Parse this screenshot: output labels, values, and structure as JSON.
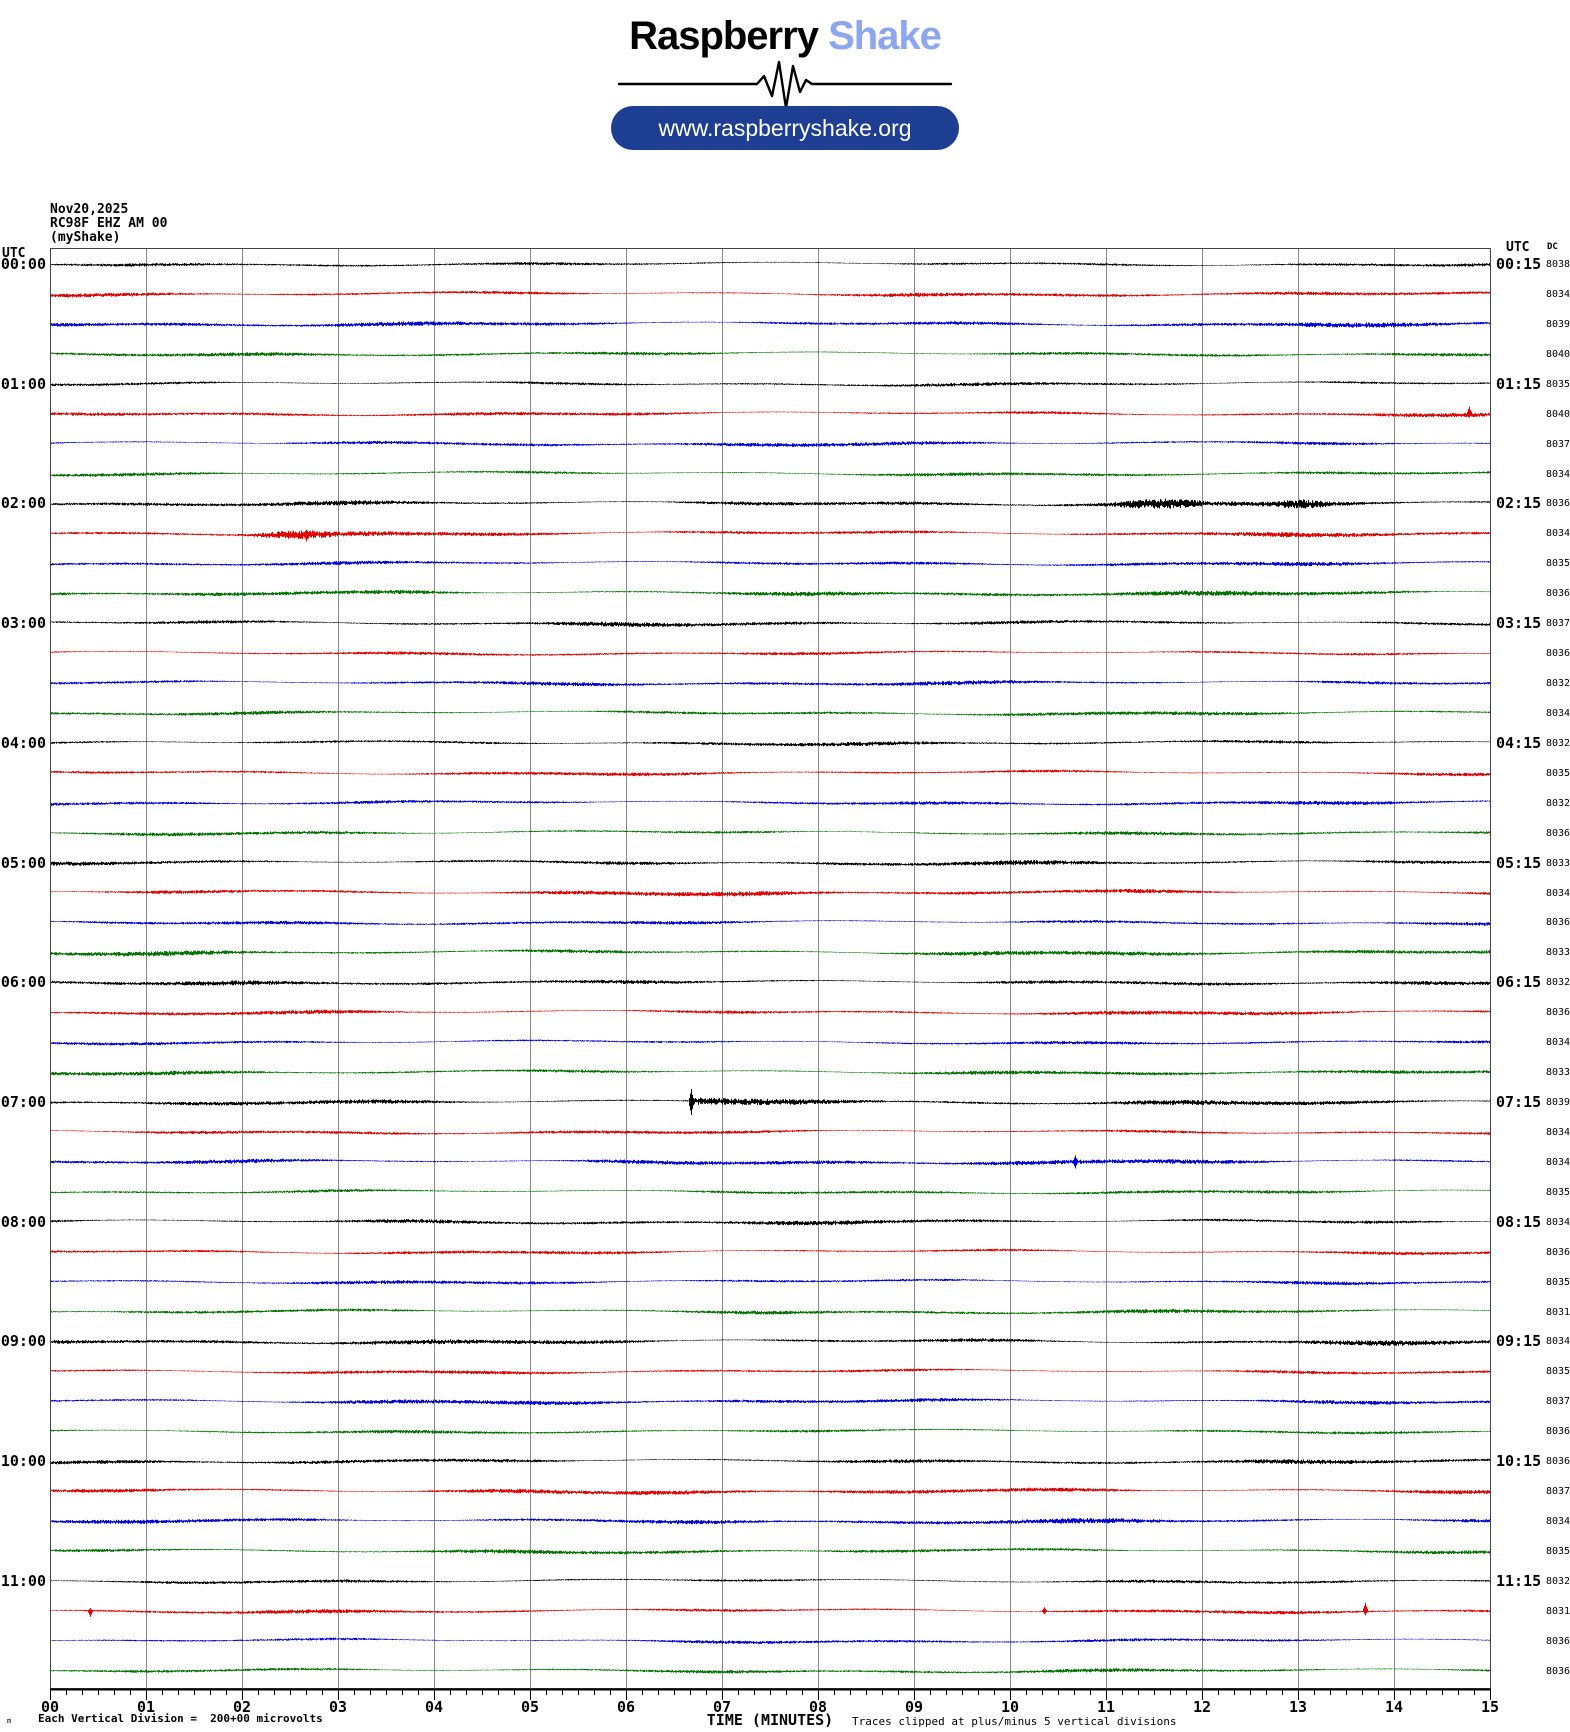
{
  "branding": {
    "name_black": "Raspberry",
    "name_accent": "Shake",
    "url": "www.raspberryshake.org",
    "accent_color": "#8ca6f0",
    "pill_color": "#1e3e94"
  },
  "plot_header": {
    "date": "Nov20,2025",
    "station": "RC98F EHZ AM 00",
    "network": "(myShake)"
  },
  "labels": {
    "utc_left": "UTC",
    "utc_right": "UTC",
    "dc": "DC"
  },
  "footer": {
    "xlabel": "TIME (MINUTES)",
    "left_note": "Each Vertical Division =  200+00 microvolts",
    "right_note": "Traces clipped at plus/minus 5 vertical divisions",
    "corner_mark": "m"
  },
  "colors": {
    "trace_cycle": [
      "#000000",
      "#e40000",
      "#0000dd",
      "#007300"
    ],
    "grid": "#8a8a8a",
    "border": "#444444"
  },
  "chart_data": {
    "type": "line",
    "subtype": "helicorder",
    "title": "RC98F EHZ AM 00 helicorder, Nov 20 2025",
    "xlabel": "TIME (MINUTES)",
    "x_min": 0,
    "x_max": 15,
    "x_ticks": [
      "00",
      "01",
      "02",
      "03",
      "04",
      "05",
      "06",
      "07",
      "08",
      "09",
      "10",
      "11",
      "12",
      "13",
      "14",
      "15"
    ],
    "minor_ticks_per_minute": 5,
    "minutes_per_row": 15,
    "rows_per_hour": 4,
    "clip_divisions": 5,
    "grid": true,
    "rows": [
      {
        "left_label": "00:00",
        "right_label": "00:15",
        "color": "black",
        "dc": 8038
      },
      {
        "left_label": "",
        "right_label": "",
        "color": "red",
        "dc": 8034
      },
      {
        "left_label": "",
        "right_label": "",
        "color": "blue",
        "dc": 8039
      },
      {
        "left_label": "",
        "right_label": "",
        "color": "green",
        "dc": 8040
      },
      {
        "left_label": "01:00",
        "right_label": "01:15",
        "color": "black",
        "dc": 8035
      },
      {
        "left_label": "",
        "right_label": "",
        "color": "red",
        "dc": 8040
      },
      {
        "left_label": "",
        "right_label": "",
        "color": "blue",
        "dc": 8037
      },
      {
        "left_label": "",
        "right_label": "",
        "color": "green",
        "dc": 8034
      },
      {
        "left_label": "02:00",
        "right_label": "02:15",
        "color": "black",
        "dc": 8036
      },
      {
        "left_label": "",
        "right_label": "",
        "color": "red",
        "dc": 8034
      },
      {
        "left_label": "",
        "right_label": "",
        "color": "blue",
        "dc": 8035
      },
      {
        "left_label": "",
        "right_label": "",
        "color": "green",
        "dc": 8036
      },
      {
        "left_label": "03:00",
        "right_label": "03:15",
        "color": "black",
        "dc": 8037
      },
      {
        "left_label": "",
        "right_label": "",
        "color": "red",
        "dc": 8036
      },
      {
        "left_label": "",
        "right_label": "",
        "color": "blue",
        "dc": 8032
      },
      {
        "left_label": "",
        "right_label": "",
        "color": "green",
        "dc": 8034
      },
      {
        "left_label": "04:00",
        "right_label": "04:15",
        "color": "black",
        "dc": 8032
      },
      {
        "left_label": "",
        "right_label": "",
        "color": "red",
        "dc": 8035
      },
      {
        "left_label": "",
        "right_label": "",
        "color": "blue",
        "dc": 8032
      },
      {
        "left_label": "",
        "right_label": "",
        "color": "green",
        "dc": 8036
      },
      {
        "left_label": "05:00",
        "right_label": "05:15",
        "color": "black",
        "dc": 8033
      },
      {
        "left_label": "",
        "right_label": "",
        "color": "red",
        "dc": 8034
      },
      {
        "left_label": "",
        "right_label": "",
        "color": "blue",
        "dc": 8036
      },
      {
        "left_label": "",
        "right_label": "",
        "color": "green",
        "dc": 8033
      },
      {
        "left_label": "06:00",
        "right_label": "06:15",
        "color": "black",
        "dc": 8032
      },
      {
        "left_label": "",
        "right_label": "",
        "color": "red",
        "dc": 8036
      },
      {
        "left_label": "",
        "right_label": "",
        "color": "blue",
        "dc": 8034
      },
      {
        "left_label": "",
        "right_label": "",
        "color": "green",
        "dc": 8033
      },
      {
        "left_label": "07:00",
        "right_label": "07:15",
        "color": "black",
        "dc": 8039
      },
      {
        "left_label": "",
        "right_label": "",
        "color": "red",
        "dc": 8034
      },
      {
        "left_label": "",
        "right_label": "",
        "color": "blue",
        "dc": 8034
      },
      {
        "left_label": "",
        "right_label": "",
        "color": "green",
        "dc": 8035
      },
      {
        "left_label": "08:00",
        "right_label": "08:15",
        "color": "black",
        "dc": 8034
      },
      {
        "left_label": "",
        "right_label": "",
        "color": "red",
        "dc": 8036
      },
      {
        "left_label": "",
        "right_label": "",
        "color": "blue",
        "dc": 8035
      },
      {
        "left_label": "",
        "right_label": "",
        "color": "green",
        "dc": 8031
      },
      {
        "left_label": "09:00",
        "right_label": "09:15",
        "color": "black",
        "dc": 8034
      },
      {
        "left_label": "",
        "right_label": "",
        "color": "red",
        "dc": 8035
      },
      {
        "left_label": "",
        "right_label": "",
        "color": "blue",
        "dc": 8037
      },
      {
        "left_label": "",
        "right_label": "",
        "color": "green",
        "dc": 8036
      },
      {
        "left_label": "10:00",
        "right_label": "10:15",
        "color": "black",
        "dc": 8036
      },
      {
        "left_label": "",
        "right_label": "",
        "color": "red",
        "dc": 8037
      },
      {
        "left_label": "",
        "right_label": "",
        "color": "blue",
        "dc": 8034
      },
      {
        "left_label": "",
        "right_label": "",
        "color": "green",
        "dc": 8035
      },
      {
        "left_label": "11:00",
        "right_label": "11:15",
        "color": "black",
        "dc": 8032
      },
      {
        "left_label": "",
        "right_label": "",
        "color": "red",
        "dc": 8031
      },
      {
        "left_label": "",
        "right_label": "",
        "color": "blue",
        "dc": 8036
      },
      {
        "left_label": "",
        "right_label": "",
        "color": "green",
        "dc": 8036
      }
    ],
    "events": [
      {
        "row": 5,
        "type": "spike",
        "minute": 14.78,
        "amplitude": 7,
        "direction": 1
      },
      {
        "row": 8,
        "type": "burst",
        "start": 11.0,
        "end": 12.1,
        "amplitude": 2.8
      },
      {
        "row": 8,
        "type": "burst",
        "start": 12.75,
        "end": 13.35,
        "amplitude": 2.2
      },
      {
        "row": 9,
        "type": "burst",
        "start": 2.05,
        "end": 3.0,
        "amplitude": 2.2
      },
      {
        "row": 9,
        "type": "spike",
        "minute": 2.67,
        "amplitude": 8,
        "direction": -1
      },
      {
        "row": 28,
        "type": "spike",
        "minute": 6.68,
        "amplitude": 13,
        "direction": 0
      },
      {
        "row": 28,
        "type": "burst",
        "start": 6.68,
        "end": 8.7,
        "amplitude": 3.2,
        "decay": true
      },
      {
        "row": 30,
        "type": "spike",
        "minute": 10.68,
        "amplitude": 6.5,
        "direction": 0
      },
      {
        "row": 45,
        "type": "spike",
        "minute": 0.42,
        "amplitude": 6,
        "direction": -1
      },
      {
        "row": 45,
        "type": "spike",
        "minute": 10.35,
        "amplitude": 3.5,
        "direction": 0
      },
      {
        "row": 45,
        "type": "spike",
        "minute": 13.7,
        "amplitude": 8,
        "direction": 1
      }
    ]
  }
}
